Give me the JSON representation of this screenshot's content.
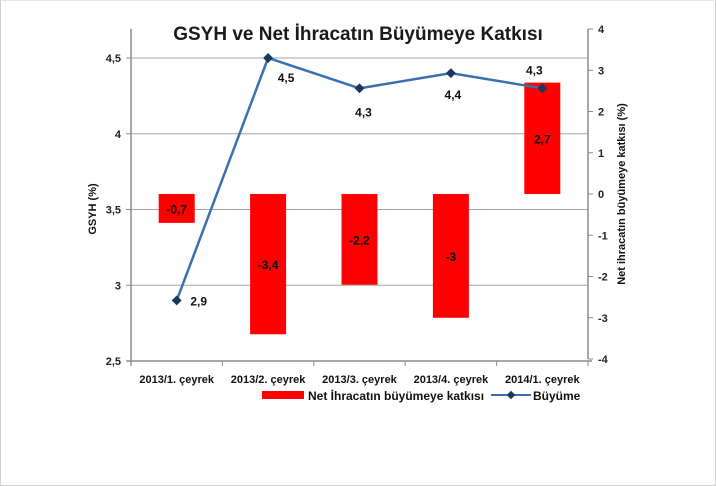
{
  "chart_data": {
    "type": "bar+line",
    "title": "GSYH ve  Net İhracatın  Büyümeye Katkısı",
    "categories": [
      "2013/1. çeyrek",
      "2013/2. çeyrek",
      "2013/3. çeyrek",
      "2013/4. çeyrek",
      "2014/1. çeyrek"
    ],
    "series": [
      {
        "name": "Net İhracatın büyümeye katkısı",
        "type": "bar",
        "axis": "right",
        "color": "#ff0000",
        "values": [
          -0.7,
          -3.4,
          -2.2,
          -3,
          2.7
        ],
        "labels": [
          "-0,7",
          "-3,4",
          "-2,2",
          "-3",
          "2,7"
        ]
      },
      {
        "name": "Büyüme",
        "type": "line",
        "axis": "left",
        "color": "#3a6fb0",
        "marker_color": "#17375e",
        "values": [
          2.9,
          4.5,
          4.3,
          4.4,
          4.3
        ],
        "labels": [
          "2,9",
          "4,5",
          "4,3",
          "4,4",
          "4,3"
        ]
      }
    ],
    "ylabel": "GSYH  (%)",
    "ylim": [
      2.5,
      4.5
    ],
    "yticks": [
      "4,5",
      "4",
      "3,5",
      "3",
      "2,5"
    ],
    "y2label": "Net ihracatın büyümeye katkısı (%)",
    "y2lim": [
      -4,
      4
    ],
    "y2ticks": [
      "4",
      "3",
      "2",
      "1",
      "0",
      "-1",
      "-2",
      "-3",
      "-4"
    ],
    "grid": true,
    "legend_position": "bottom"
  }
}
